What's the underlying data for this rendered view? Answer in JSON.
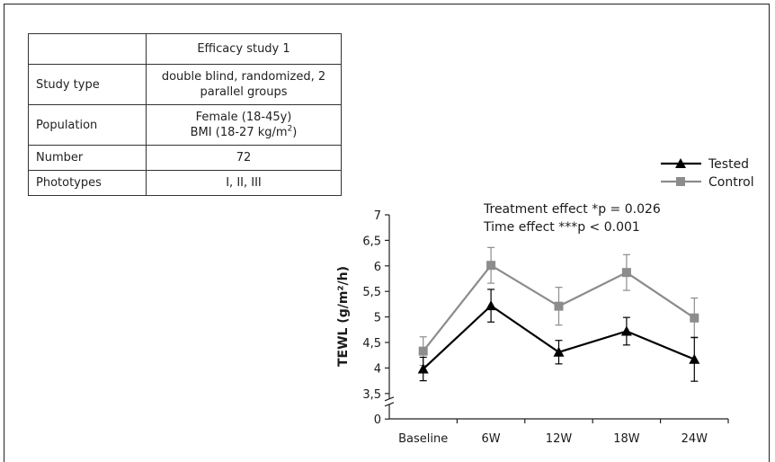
{
  "table": {
    "header": [
      "",
      "Efficacy study 1"
    ],
    "rows": [
      {
        "key": "Study type",
        "val": "double blind, randomized, 2 parallel groups"
      },
      {
        "key": "Population",
        "val1": "Female (18-45y)",
        "val2": "BMI (18-27 kg/m",
        "val2_sup": "2",
        "val2_tail": ")"
      },
      {
        "key": "Number",
        "val": "72"
      },
      {
        "key": "Phototypes",
        "val": "I, II, III"
      }
    ]
  },
  "annotations": {
    "treatment": "Treatment effect *p = 0.026",
    "time": "Time effect ***p < 0.001"
  },
  "chart_data": {
    "type": "line",
    "categories": [
      "Baseline",
      "6W",
      "12W",
      "18W",
      "24W"
    ],
    "ylabel": "TEWL (g/m²/h)",
    "ylim": [
      0,
      7
    ],
    "yticks": [
      "0",
      "3,5",
      "4",
      "4,5",
      "5",
      "5,5",
      "6",
      "6,5",
      "7"
    ],
    "yticks_values": [
      0,
      3.5,
      4,
      4.5,
      5,
      5.5,
      6,
      6.5,
      7
    ],
    "axis_break": true,
    "legend_position": "top-right",
    "series": [
      {
        "name": "Tested",
        "color": "#000000",
        "marker": "triangle",
        "values": [
          3.98,
          5.22,
          4.31,
          4.72,
          4.17
        ],
        "errors": [
          0.23,
          0.32,
          0.23,
          0.27,
          0.43
        ]
      },
      {
        "name": "Control",
        "color": "#8c8c8c",
        "marker": "square",
        "values": [
          4.33,
          6.01,
          5.21,
          5.87,
          4.98
        ],
        "errors": [
          0.28,
          0.35,
          0.37,
          0.35,
          0.39
        ]
      }
    ]
  }
}
